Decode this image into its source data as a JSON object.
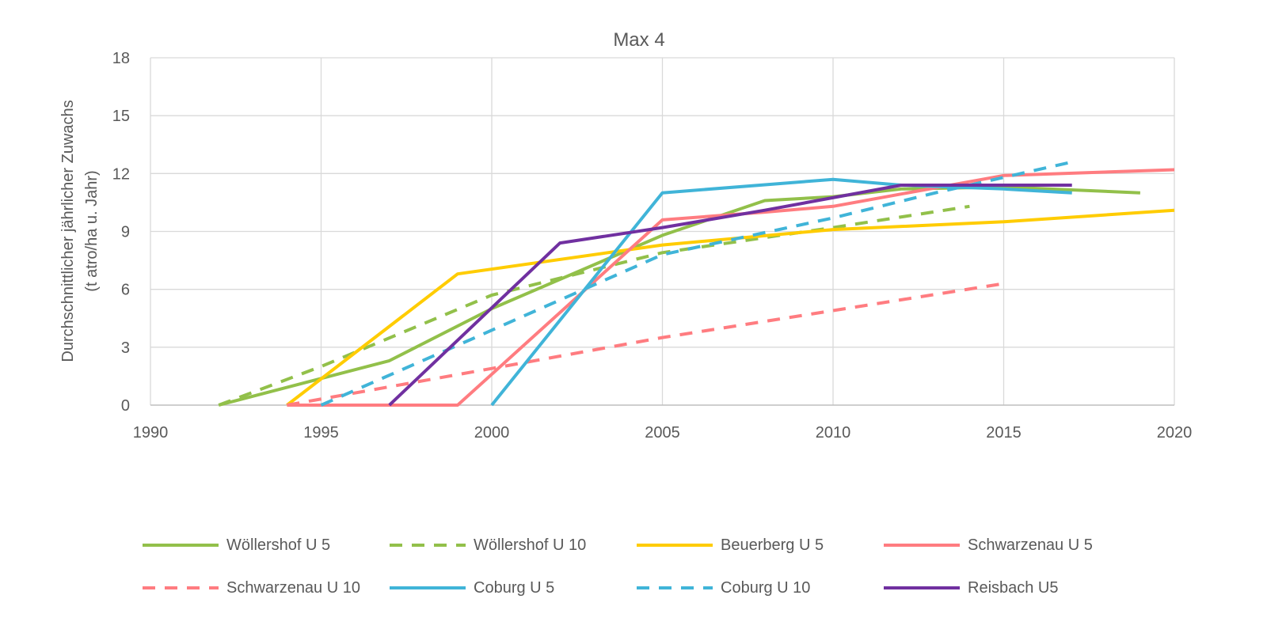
{
  "chart_data": {
    "type": "line",
    "title": "Max 4",
    "xlabel": "",
    "ylabel": "Durchschnittlicher jährlicher Zuwachs",
    "ylabel_line2": "(t atro/ha u. Jahr)",
    "xlim": [
      1990,
      2020
    ],
    "ylim": [
      0,
      18
    ],
    "xticks": [
      1990,
      1995,
      2000,
      2005,
      2010,
      2015,
      2020
    ],
    "yticks": [
      0,
      3,
      6,
      9,
      12,
      15,
      18
    ],
    "grid": true,
    "legend_position": "bottom",
    "series": [
      {
        "name": "Wöllershof U 5",
        "color": "#92c04a",
        "dashed": false,
        "points": [
          [
            1992,
            0
          ],
          [
            1997,
            2.3
          ],
          [
            2000,
            5.0
          ],
          [
            2005,
            8.8
          ],
          [
            2008,
            10.6
          ],
          [
            2010,
            10.8
          ],
          [
            2012,
            11.2
          ],
          [
            2015,
            11.3
          ],
          [
            2019,
            11.0
          ]
        ]
      },
      {
        "name": "Wöllershof U 10",
        "color": "#92c04a",
        "dashed": true,
        "points": [
          [
            1992,
            0
          ],
          [
            1995,
            2.0
          ],
          [
            2000,
            5.7
          ],
          [
            2005,
            7.9
          ],
          [
            2010,
            9.2
          ],
          [
            2014,
            10.3
          ]
        ]
      },
      {
        "name": "Beuerberg U 5",
        "color": "#ffcc00",
        "dashed": false,
        "points": [
          [
            1994,
            0
          ],
          [
            1999,
            6.8
          ],
          [
            2005,
            8.3
          ],
          [
            2010,
            9.1
          ],
          [
            2015,
            9.5
          ],
          [
            2020,
            10.1
          ]
        ]
      },
      {
        "name": "Schwarzenau U 5",
        "color": "#ff7c80",
        "dashed": false,
        "points": [
          [
            1994,
            0
          ],
          [
            1999,
            0
          ],
          [
            2005,
            9.6
          ],
          [
            2008,
            10.0
          ],
          [
            2010,
            10.3
          ],
          [
            2015,
            11.9
          ],
          [
            2020,
            12.2
          ]
        ]
      },
      {
        "name": "Schwarzenau U 10",
        "color": "#ff7c80",
        "dashed": true,
        "points": [
          [
            1994,
            0
          ],
          [
            2000,
            1.9
          ],
          [
            2005,
            3.5
          ],
          [
            2010,
            4.9
          ],
          [
            2015,
            6.3
          ]
        ]
      },
      {
        "name": "Coburg U 5",
        "color": "#40b4d8",
        "dashed": false,
        "points": [
          [
            2000,
            0
          ],
          [
            2005,
            11.0
          ],
          [
            2010,
            11.7
          ],
          [
            2012,
            11.4
          ],
          [
            2015,
            11.2
          ],
          [
            2017,
            11.0
          ]
        ]
      },
      {
        "name": "Coburg U 10",
        "color": "#40b4d8",
        "dashed": true,
        "points": [
          [
            1995,
            0
          ],
          [
            1999,
            3.1
          ],
          [
            2005,
            7.8
          ],
          [
            2010,
            9.7
          ],
          [
            2013,
            11.0
          ],
          [
            2017,
            12.6
          ]
        ]
      },
      {
        "name": "Reisbach U5",
        "color": "#7030a0",
        "dashed": false,
        "points": [
          [
            1997,
            0
          ],
          [
            2002,
            8.4
          ],
          [
            2005,
            9.2
          ],
          [
            2008,
            10.1
          ],
          [
            2012,
            11.4
          ],
          [
            2015,
            11.4
          ],
          [
            2017,
            11.4
          ]
        ]
      }
    ]
  }
}
